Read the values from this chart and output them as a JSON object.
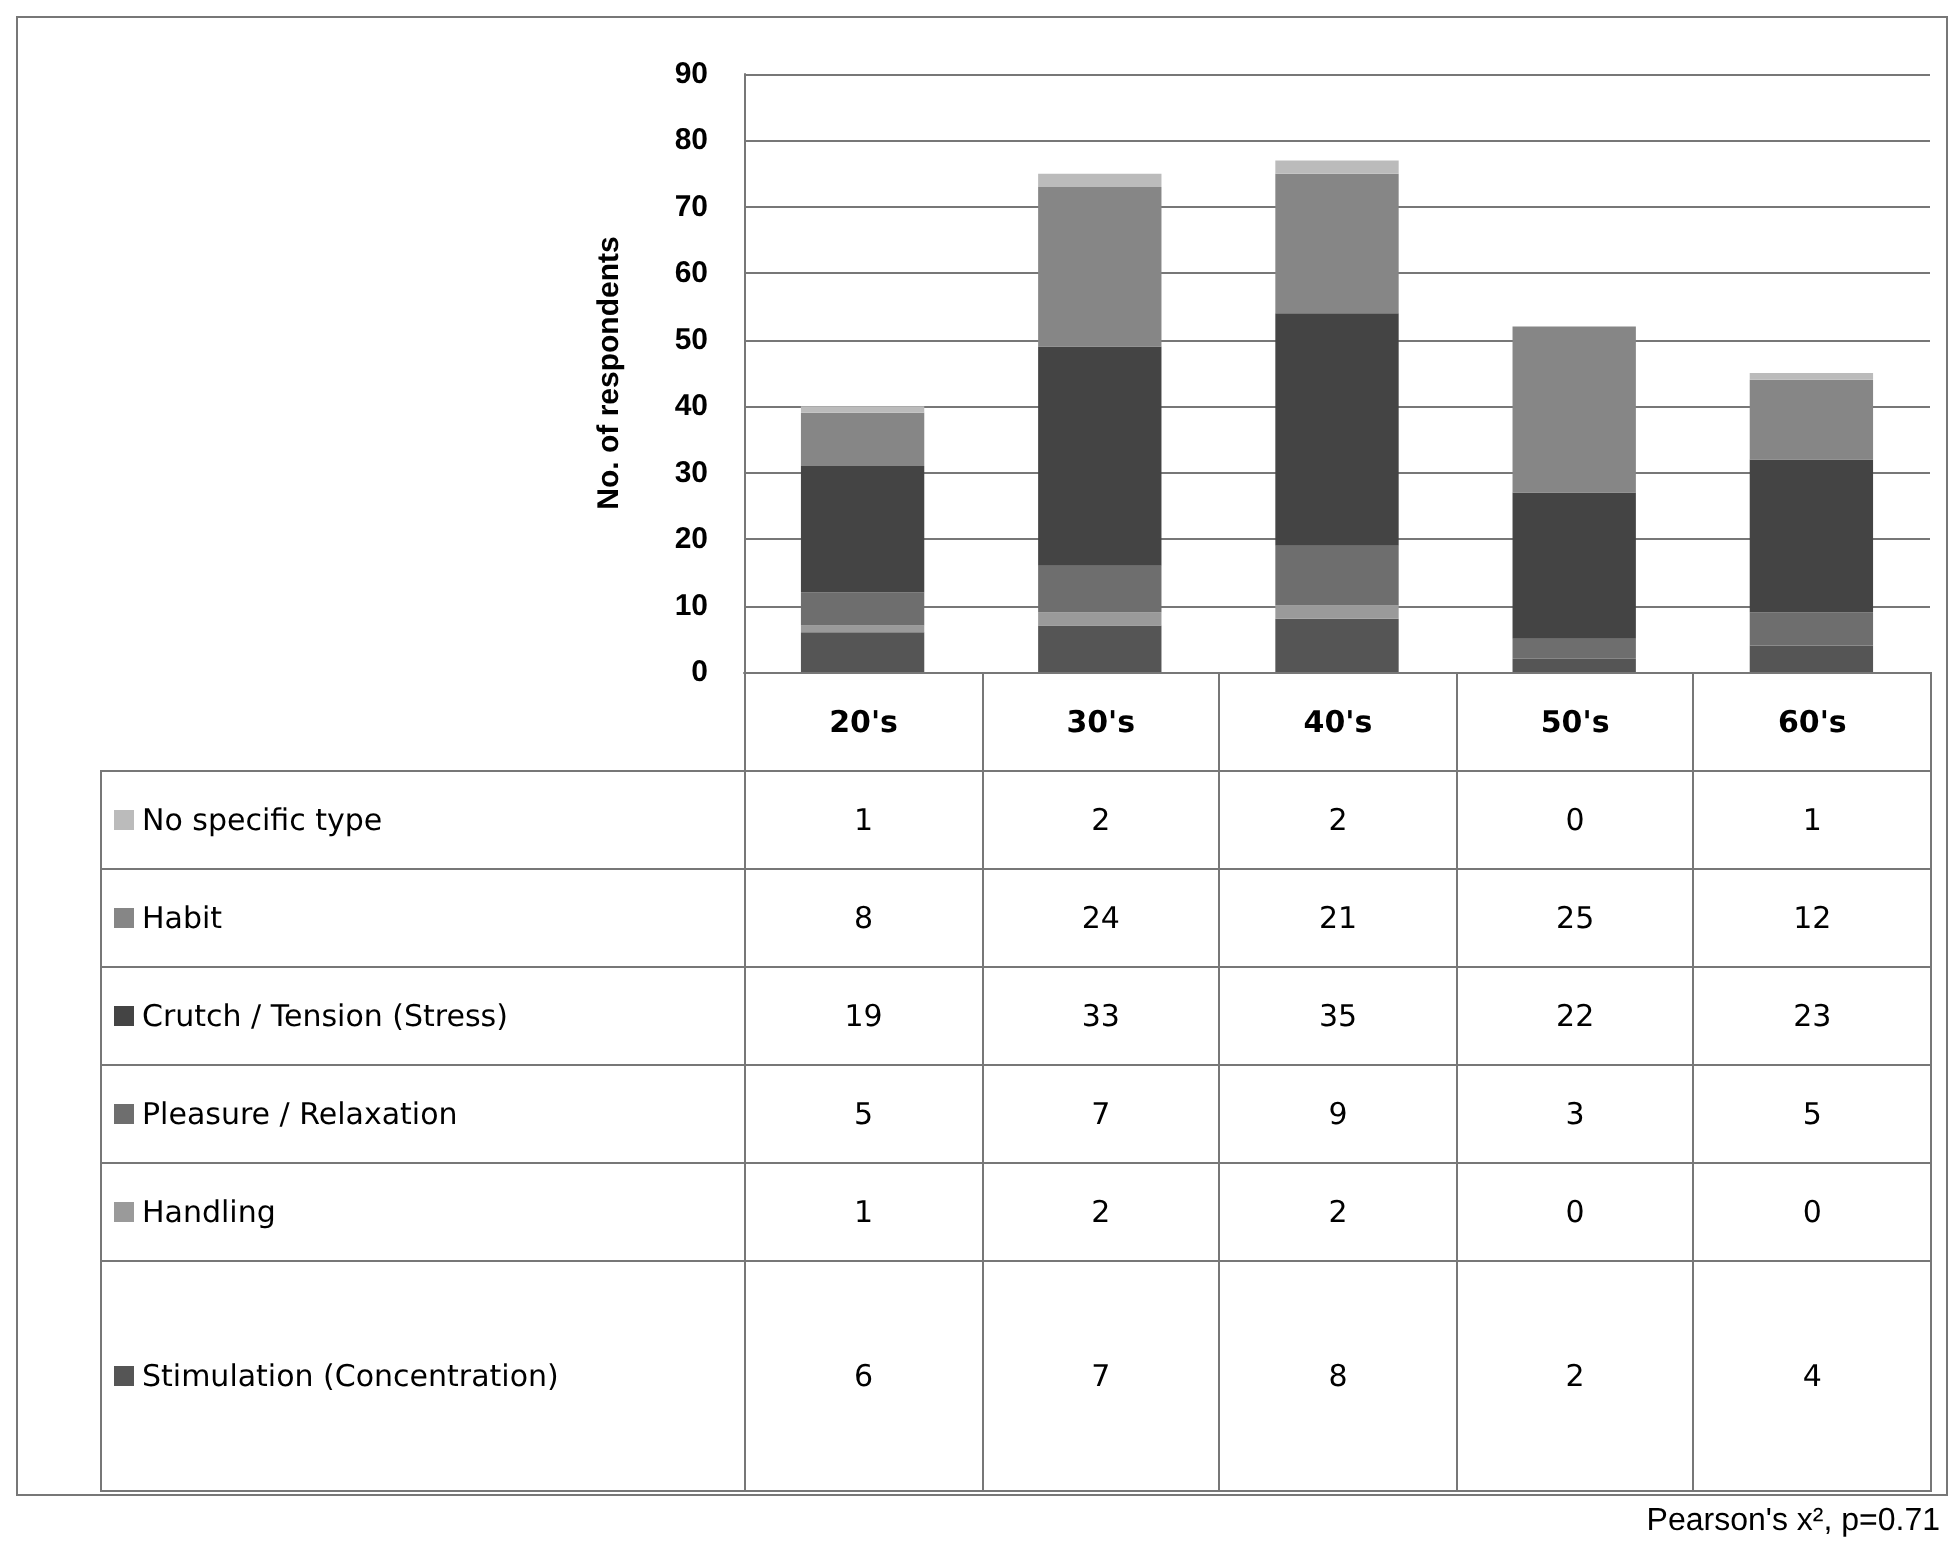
{
  "chart_data": {
    "type": "bar",
    "stacked": true,
    "ylabel": "No. of respondents",
    "categories": [
      "20's",
      "30's",
      "40's",
      "50's",
      "60's"
    ],
    "series": [
      {
        "name": "Stimulation (Concentration)",
        "color": "#555555",
        "values": [
          6,
          7,
          8,
          2,
          4
        ]
      },
      {
        "name": "Handling",
        "color": "#9a9a9a",
        "values": [
          1,
          2,
          2,
          0,
          0
        ]
      },
      {
        "name": "Pleasure / Relaxation",
        "color": "#6e6e6e",
        "values": [
          5,
          7,
          9,
          3,
          5
        ]
      },
      {
        "name": "Crutch / Tension (Stress)",
        "color": "#444444",
        "values": [
          19,
          33,
          35,
          22,
          23
        ]
      },
      {
        "name": "Habit",
        "color": "#868686",
        "values": [
          8,
          24,
          21,
          25,
          12
        ]
      },
      {
        "name": "No specific type",
        "color": "#bbbbbb",
        "values": [
          1,
          2,
          2,
          0,
          1
        ]
      }
    ],
    "ylim": [
      0,
      90
    ],
    "yticks": [
      0,
      10,
      20,
      30,
      40,
      50,
      60,
      70,
      80,
      90
    ],
    "grid": "y",
    "legend": "bottom",
    "data_labels": true,
    "annotations": [
      "Pearson's x², p=0.71"
    ]
  }
}
